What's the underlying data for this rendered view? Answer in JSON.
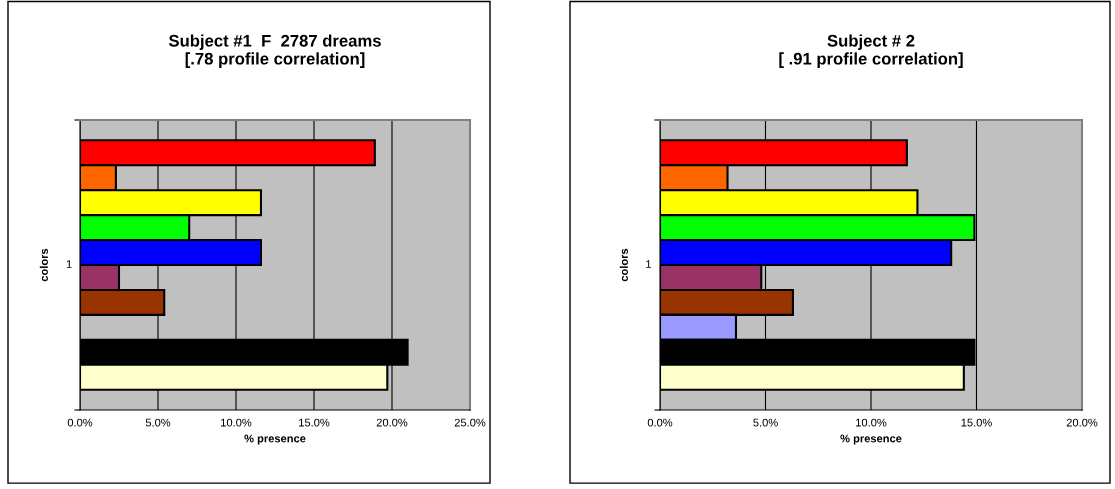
{
  "chart_data": [
    {
      "type": "bar",
      "orientation": "horizontal",
      "title": "Subject #1  F  2787 dreams\n[.78 profile correlation]",
      "xlabel": "% presence",
      "ylabel": "colors",
      "categories": [
        "1"
      ],
      "legend": false,
      "grid": "x",
      "xlim": [
        0,
        25
      ],
      "xticks": [
        {
          "value": 0,
          "label": "0.0%"
        },
        {
          "value": 5,
          "label": "5.0%"
        },
        {
          "value": 10,
          "label": "10.0%"
        },
        {
          "value": 15,
          "label": "15.0%"
        },
        {
          "value": 20,
          "label": "20.0%"
        },
        {
          "value": 25,
          "label": "25.0%"
        }
      ],
      "series": [
        {
          "color": "#ff0000",
          "values": [
            18.9
          ]
        },
        {
          "color": "#ff6600",
          "values": [
            2.3
          ]
        },
        {
          "color": "#ffff00",
          "values": [
            11.6
          ]
        },
        {
          "color": "#00ff00",
          "values": [
            7.0
          ]
        },
        {
          "color": "#0000ff",
          "values": [
            11.6
          ]
        },
        {
          "color": "#993366",
          "values": [
            2.5
          ]
        },
        {
          "color": "#993300",
          "values": [
            5.4
          ]
        },
        {
          "color": "#9999ff",
          "values": [
            null
          ]
        },
        {
          "color": "#000000",
          "values": [
            21.0
          ]
        },
        {
          "color": "#ffffcc",
          "values": [
            19.7
          ]
        }
      ]
    },
    {
      "type": "bar",
      "orientation": "horizontal",
      "title": "Subject # 2\n[ .91 profile correlation]",
      "xlabel": "% presence",
      "ylabel": "colors",
      "categories": [
        "1"
      ],
      "legend": false,
      "grid": "x",
      "xlim": [
        0,
        20
      ],
      "xticks": [
        {
          "value": 0,
          "label": "0.0%"
        },
        {
          "value": 5,
          "label": "5.0%"
        },
        {
          "value": 10,
          "label": "10.0%"
        },
        {
          "value": 15,
          "label": "15.0%"
        },
        {
          "value": 20,
          "label": "20.0%"
        }
      ],
      "series": [
        {
          "color": "#ff0000",
          "values": [
            11.7
          ]
        },
        {
          "color": "#ff6600",
          "values": [
            3.2
          ]
        },
        {
          "color": "#ffff00",
          "values": [
            12.2
          ]
        },
        {
          "color": "#00ff00",
          "values": [
            14.9
          ]
        },
        {
          "color": "#0000ff",
          "values": [
            13.8
          ]
        },
        {
          "color": "#993366",
          "values": [
            4.8
          ]
        },
        {
          "color": "#993300",
          "values": [
            6.3
          ]
        },
        {
          "color": "#9999ff",
          "values": [
            3.6
          ]
        },
        {
          "color": "#000000",
          "values": [
            14.9
          ]
        },
        {
          "color": "#ffffcc",
          "values": [
            14.4
          ]
        }
      ]
    }
  ]
}
